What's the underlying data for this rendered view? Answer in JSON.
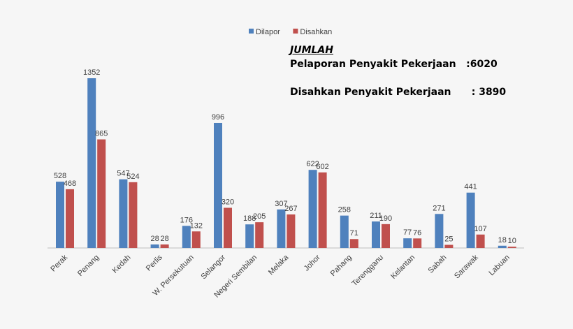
{
  "chart_data": {
    "type": "bar",
    "categories": [
      "Perak",
      "Penang",
      "Kedah",
      "Perlis",
      "W. Persekutuan",
      "Selangor",
      "Negeri Sembilan",
      "Melaka",
      "Johor",
      "Pahang",
      "Terengganu",
      "Kelantan",
      "Sabah",
      "Sarawak",
      "Labuan"
    ],
    "series": [
      {
        "name": "Dilapor",
        "color": "#4f81bd",
        "values": [
          528,
          1352,
          547,
          28,
          176,
          996,
          188,
          307,
          622,
          258,
          211,
          77,
          271,
          441,
          18
        ]
      },
      {
        "name": "Disahkan",
        "color": "#c0504d",
        "values": [
          468,
          865,
          524,
          28,
          132,
          320,
          205,
          267,
          602,
          71,
          190,
          76,
          25,
          107,
          10
        ]
      }
    ],
    "ylim": [
      0,
      1400
    ],
    "grid": false,
    "legend": "top-center",
    "data_labels": true
  },
  "annotation": {
    "heading": "JUMLAH",
    "line1": "Pelaporan Penyakit Pekerjaan   :6020",
    "line2": "Disahkan Penyakit Pekerjaan      : 3890"
  }
}
